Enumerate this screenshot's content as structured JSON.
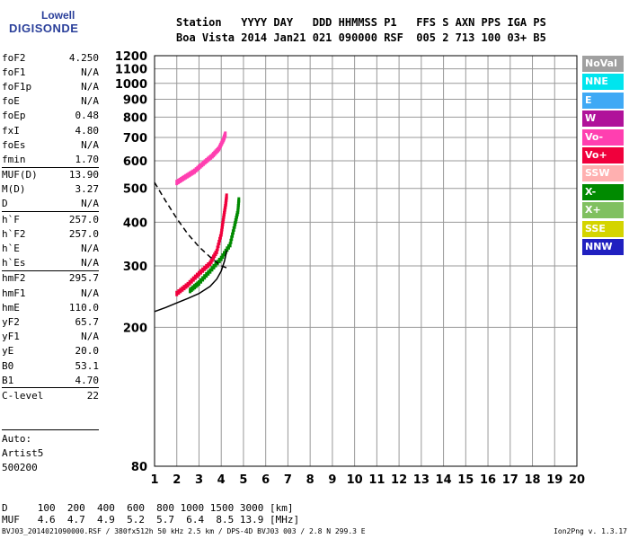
{
  "brand": {
    "line1": "Lowell",
    "line2": "DIGISONDE"
  },
  "header": {
    "row1": "Station   YYYY DAY   DDD HHMMSS P1   FFS S AXN PPS IGA PS",
    "row2": "Boa Vista 2014 Jan21 021 090000 RSF  005 2 713 100 03+ B5"
  },
  "params": [
    {
      "name": "foF2",
      "value": "4.250"
    },
    {
      "name": "foF1",
      "value": "N/A"
    },
    {
      "name": "foF1p",
      "value": "N/A"
    },
    {
      "name": "foE",
      "value": "N/A"
    },
    {
      "name": "foEp",
      "value": "0.48"
    },
    {
      "name": "fxI",
      "value": "4.80"
    },
    {
      "name": "foEs",
      "value": "N/A"
    },
    {
      "name": "fmin",
      "value": "1.70"
    },
    {
      "name": "MUF(D)",
      "value": "13.90",
      "sep": true
    },
    {
      "name": "M(D)",
      "value": "3.27"
    },
    {
      "name": "D",
      "value": "N/A"
    },
    {
      "name": "h`F",
      "value": "257.0",
      "sep": true
    },
    {
      "name": "h`F2",
      "value": "257.0"
    },
    {
      "name": "h`E",
      "value": "N/A"
    },
    {
      "name": "h`Es",
      "value": "N/A"
    },
    {
      "name": "hmF2",
      "value": "295.7",
      "sep": true
    },
    {
      "name": "hmF1",
      "value": "N/A"
    },
    {
      "name": "hmE",
      "value": "110.0"
    },
    {
      "name": "yF2",
      "value": "65.7"
    },
    {
      "name": "yF1",
      "value": "N/A"
    },
    {
      "name": "yE",
      "value": "20.0"
    },
    {
      "name": "B0",
      "value": "53.1"
    },
    {
      "name": "B1",
      "value": "4.70"
    },
    {
      "name": "C-level",
      "value": "22",
      "sep": true
    }
  ],
  "auto": {
    "line1": "Auto:",
    "line2": "Artist5",
    "line3": "500200"
  },
  "legend": [
    {
      "label": "NoVal",
      "color": "#a0a0a0"
    },
    {
      "label": "NNE",
      "color": "#00e5ee"
    },
    {
      "label": "E",
      "color": "#3fa9f5"
    },
    {
      "label": "W",
      "color": "#b0129a"
    },
    {
      "label": "Vo-",
      "color": "#ff3fb0"
    },
    {
      "label": "Vo+",
      "color": "#f0003c"
    },
    {
      "label": "SSW",
      "color": "#ffb0b0"
    },
    {
      "label": "X-",
      "color": "#008a00"
    },
    {
      "label": "X+",
      "color": "#80c060"
    },
    {
      "label": "SSE",
      "color": "#d4d400"
    },
    {
      "label": "NNW",
      "color": "#2020c0"
    }
  ],
  "muf_table": {
    "d_row": "D     100  200  400  600  800 1000 1500 3000 [km]",
    "muf_row": "MUF   4.6  4.7  4.9  5.2  5.7  6.4  8.5 13.9 [MHz]"
  },
  "footer": {
    "left": "BVJ03_2014021090000.RSF / 380fx512h 50 kHz 2.5 km / DPS-4D BVJ03 003 / 2.8 N 299.3 E",
    "right": "Ion2Png v. 1.3.17"
  },
  "chart_data": {
    "type": "scatter",
    "xlim": [
      1,
      20
    ],
    "ylim": [
      80,
      1200
    ],
    "x_ticks": [
      1,
      2,
      3,
      4,
      5,
      6,
      7,
      8,
      9,
      10,
      11,
      12,
      13,
      14,
      15,
      16,
      17,
      18,
      19,
      20
    ],
    "y_ticks": [
      80,
      200,
      300,
      400,
      500,
      600,
      700,
      800,
      900,
      1000,
      1100,
      1200
    ],
    "grid": true,
    "log_y": true,
    "traces": [
      {
        "name": "O-mode F trace",
        "color": "#f0003c",
        "points": [
          [
            2.0,
            250
          ],
          [
            2.5,
            265
          ],
          [
            3.0,
            285
          ],
          [
            3.5,
            305
          ],
          [
            3.8,
            330
          ],
          [
            4.0,
            370
          ],
          [
            4.1,
            410
          ],
          [
            4.2,
            450
          ],
          [
            4.25,
            480
          ]
        ]
      },
      {
        "name": "X-mode F trace",
        "color": "#008a00",
        "points": [
          [
            2.6,
            255
          ],
          [
            3.0,
            268
          ],
          [
            3.5,
            290
          ],
          [
            4.0,
            315
          ],
          [
            4.4,
            345
          ],
          [
            4.6,
            390
          ],
          [
            4.75,
            430
          ],
          [
            4.8,
            470
          ]
        ]
      },
      {
        "name": "multiple reflection",
        "color": "#ff3fb0",
        "points": [
          [
            2.0,
            520
          ],
          [
            2.4,
            540
          ],
          [
            2.8,
            560
          ],
          [
            3.2,
            590
          ],
          [
            3.6,
            620
          ],
          [
            3.9,
            650
          ],
          [
            4.1,
            690
          ],
          [
            4.2,
            720
          ]
        ]
      }
    ],
    "profile": {
      "color": "#000000",
      "points": [
        [
          1.0,
          222
        ],
        [
          1.5,
          228
        ],
        [
          2.0,
          235
        ],
        [
          2.5,
          242
        ],
        [
          3.0,
          250
        ],
        [
          3.5,
          262
        ],
        [
          3.8,
          275
        ],
        [
          4.0,
          290
        ],
        [
          4.15,
          310
        ],
        [
          4.25,
          332
        ]
      ]
    },
    "dashed_profile": {
      "color": "#000000",
      "points": [
        [
          1.0,
          520
        ],
        [
          1.5,
          460
        ],
        [
          2.0,
          410
        ],
        [
          2.5,
          370
        ],
        [
          3.0,
          340
        ],
        [
          3.5,
          318
        ],
        [
          4.0,
          300
        ],
        [
          4.25,
          296
        ]
      ]
    }
  }
}
